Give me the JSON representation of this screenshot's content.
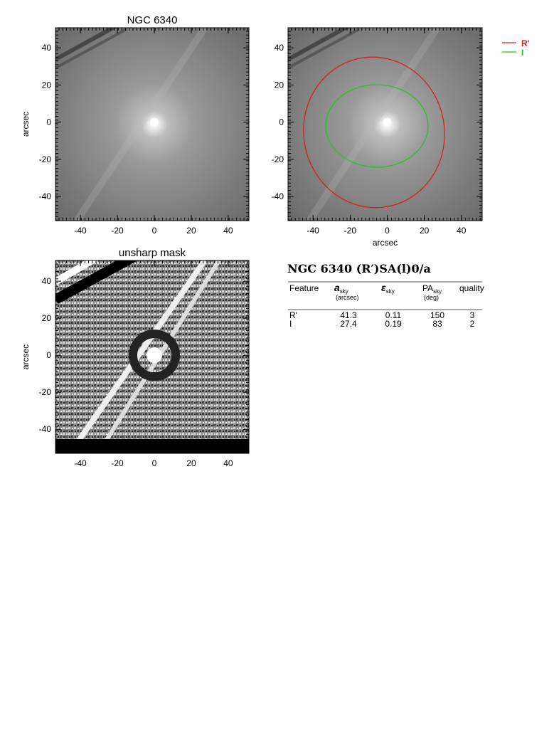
{
  "panels": [
    {
      "title": "NGC 6340",
      "ylabel": "arcsec",
      "xlim": [
        -53.5,
        51.2
      ],
      "ylim": [
        -53,
        50.8
      ],
      "xticks": [
        -40,
        -20,
        0,
        20,
        40
      ],
      "yticks": [
        -40,
        -20,
        0,
        20,
        40
      ]
    },
    {
      "xlabel": "arcsec",
      "xlim": [
        -53.5,
        51.2
      ],
      "ylim": [
        -53,
        50.8
      ],
      "xticks": [
        -40,
        -20,
        0,
        20,
        40
      ],
      "yticks": [
        -40,
        -20,
        0,
        20,
        40
      ]
    },
    {
      "title": "unsharp mask",
      "ylabel": "arcsec",
      "xlim": [
        -53.5,
        51.2
      ],
      "ylim": [
        -53,
        51.2
      ],
      "xticks": [
        -40,
        -20,
        0,
        20,
        40
      ],
      "yticks": [
        -40,
        -20,
        0,
        20,
        40
      ]
    }
  ],
  "legend": [
    {
      "name": "R'",
      "color": "#d81e1e"
    },
    {
      "name": "I",
      "color": "#22c422"
    }
  ],
  "table": {
    "title": "NGC 6340  (R′)SA(l)0/a",
    "columns": [
      {
        "label": "Feature"
      },
      {
        "label": "a",
        "sub": "sky",
        "unit": "(arcsec)"
      },
      {
        "label": "ε",
        "sub": "sky"
      },
      {
        "label": "PA",
        "sub": "sky",
        "unit": "(deg)"
      },
      {
        "label": "quality"
      }
    ],
    "rows": [
      [
        "R'",
        41.3,
        0.11,
        150,
        3
      ],
      [
        "I",
        27.4,
        0.19,
        83,
        2
      ]
    ]
  }
}
